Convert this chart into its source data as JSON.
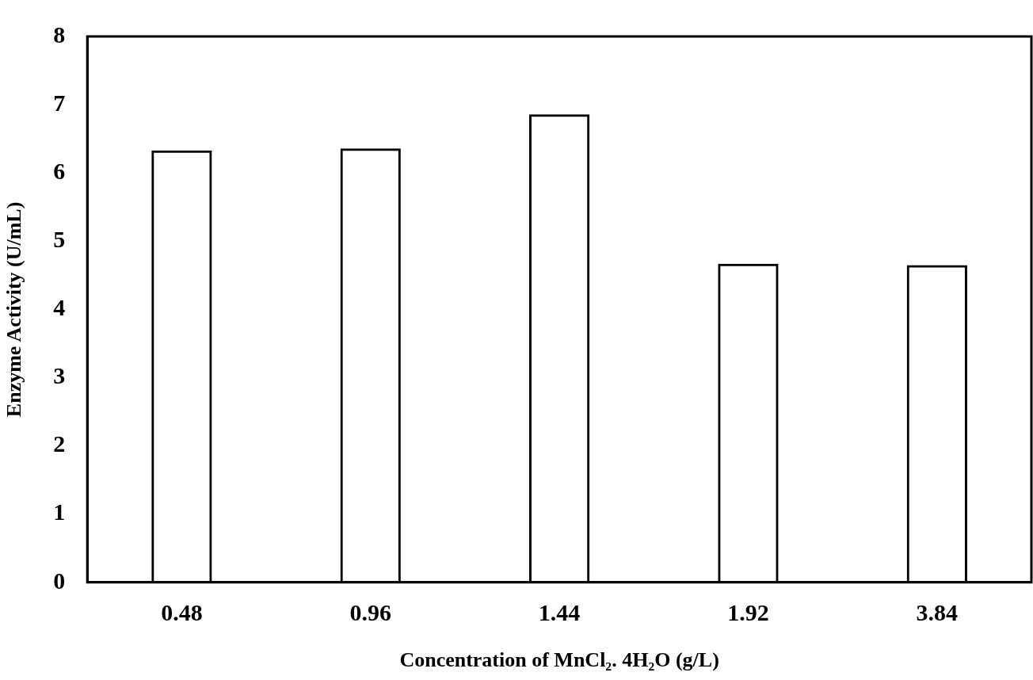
{
  "chart_data": {
    "type": "bar",
    "xlabel": "Concentration of MnCl₂. 4H₂O (g/L)",
    "ylabel": "Enzyme Activity (U/mL)",
    "categories": [
      "0.48",
      "0.96",
      "1.44",
      "1.92",
      "3.84"
    ],
    "values": [
      6.33,
      6.36,
      6.86,
      4.67,
      4.65
    ],
    "color": "#000000",
    "ylim": [
      0,
      8
    ],
    "yticks": [
      0,
      1,
      2,
      3,
      4,
      5,
      6,
      7,
      8
    ],
    "grid": false,
    "legend": false
  }
}
